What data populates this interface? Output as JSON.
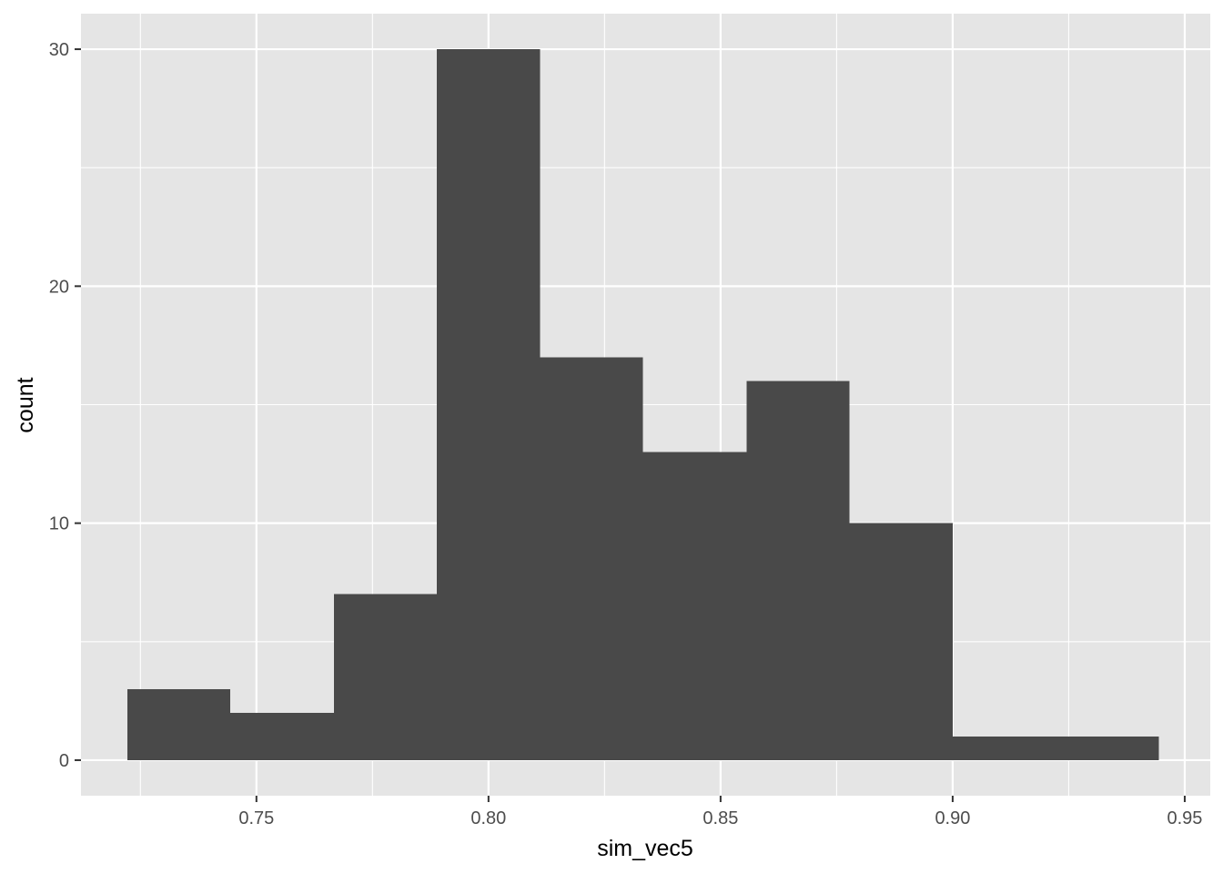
{
  "chart_data": {
    "type": "bar",
    "subtype": "histogram",
    "xlabel": "sim_vec5",
    "ylabel": "count",
    "xlim": [
      0.7122,
      0.9555
    ],
    "ylim": [
      -1.5,
      31.5
    ],
    "x_ticks": [
      0.75,
      0.8,
      0.85,
      0.9,
      0.95
    ],
    "x_tick_labels": [
      "0.75",
      "0.80",
      "0.85",
      "0.90",
      "0.95"
    ],
    "y_ticks": [
      0,
      10,
      20,
      30
    ],
    "y_tick_labels": [
      "0",
      "10",
      "20",
      "30"
    ],
    "grid": true,
    "bins": [
      {
        "x0": 0.7222,
        "x1": 0.7444,
        "count": 3
      },
      {
        "x0": 0.7444,
        "x1": 0.7667,
        "count": 2
      },
      {
        "x0": 0.7667,
        "x1": 0.7889,
        "count": 7
      },
      {
        "x0": 0.7889,
        "x1": 0.8111,
        "count": 30
      },
      {
        "x0": 0.8111,
        "x1": 0.8333,
        "count": 17
      },
      {
        "x0": 0.8333,
        "x1": 0.8556,
        "count": 13
      },
      {
        "x0": 0.8556,
        "x1": 0.8778,
        "count": 16
      },
      {
        "x0": 0.8778,
        "x1": 0.9,
        "count": 10
      },
      {
        "x0": 0.9,
        "x1": 0.9222,
        "count": 1
      },
      {
        "x0": 0.9222,
        "x1": 0.9444,
        "count": 1
      }
    ],
    "colors": {
      "panel": "#e5e5e5",
      "grid": "#ffffff",
      "bar": "#494949",
      "tick": "#333333"
    }
  }
}
